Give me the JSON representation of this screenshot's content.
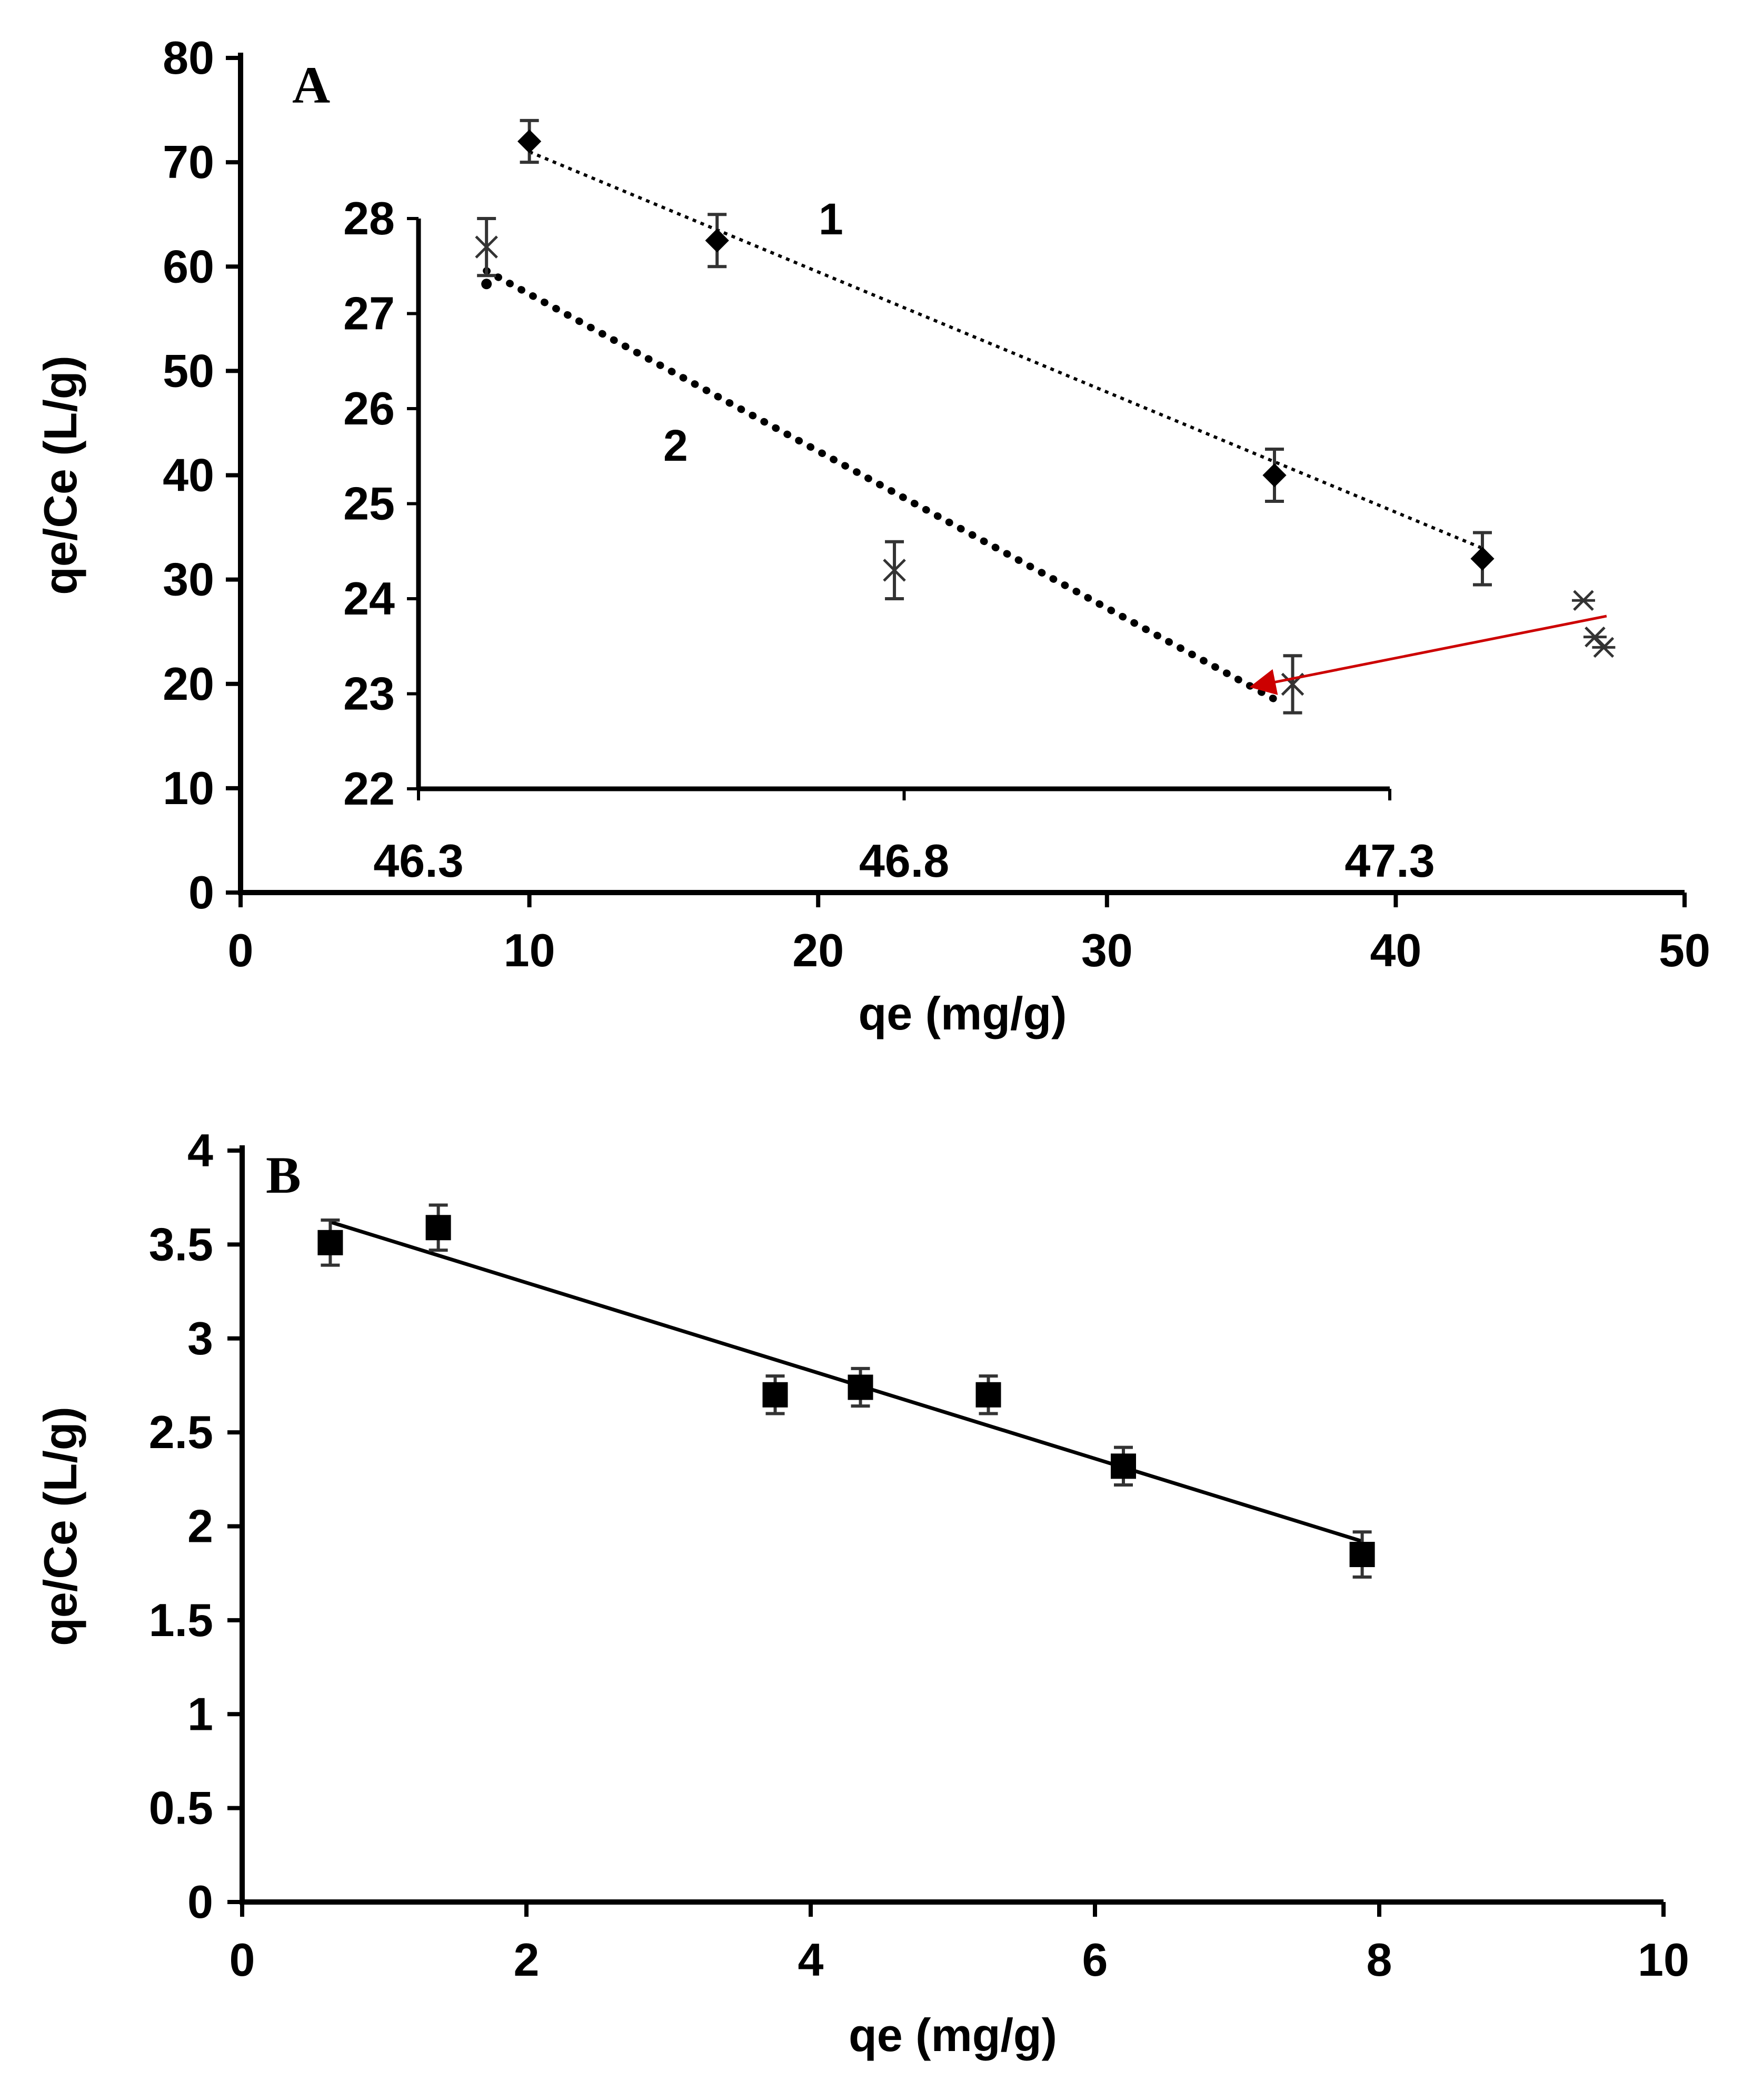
{
  "chart_data": [
    {
      "panel_label": "A",
      "type": "scatter",
      "xlabel": "qe (mg/g)",
      "ylabel": "qe/Ce (L/g)",
      "xlim": [
        0,
        50
      ],
      "ylim": [
        0,
        80
      ],
      "xticks": [
        "0",
        "10",
        "20",
        "30",
        "40",
        "50"
      ],
      "yticks": [
        "0",
        "10",
        "20",
        "30",
        "40",
        "50",
        "60",
        "70",
        "80"
      ],
      "series": [
        {
          "name": "1",
          "marker": "diamond",
          "x": [
            10.0,
            16.5,
            35.8,
            43.0
          ],
          "y": [
            72.0,
            62.5,
            40.0,
            32.0
          ],
          "error": [
            2.0,
            2.5,
            2.5,
            2.5
          ],
          "trendline": "dotted-fine",
          "fit_y": [
            71.0,
            33.0
          ]
        }
      ],
      "inset": {
        "xlim": [
          46.3,
          47.3
        ],
        "ylim": [
          22,
          28
        ],
        "xticks": [
          "46.3",
          "46.8",
          "47.3"
        ],
        "yticks": [
          "22",
          "23",
          "24",
          "25",
          "26",
          "27",
          "28"
        ],
        "series": [
          {
            "name": "2",
            "marker": "x",
            "x": [
              46.37,
              46.79,
              47.2
            ],
            "y": [
              27.7,
              24.3,
              23.1
            ],
            "error": [
              0.3,
              0.3,
              0.3
            ],
            "trendline": "dotted-bold",
            "fit_x": [
              46.37,
              47.18
            ],
            "fit_y": [
              27.45,
              22.95
            ]
          }
        ]
      },
      "outlier_markers": {
        "x": [
          46.5,
          46.9,
          47.2
        ],
        "y": [
          28.0,
          24.5,
          23.5
        ]
      },
      "annotation": "red arrow pointing from the main-scale points near qe = 47 to the inset"
    },
    {
      "panel_label": "B",
      "type": "scatter",
      "xlabel": "qe (mg/g)",
      "ylabel": "qe/Ce (L/g)",
      "xlim": [
        0,
        10
      ],
      "ylim": [
        0,
        4
      ],
      "xticks": [
        "0",
        "2",
        "4",
        "6",
        "8",
        "10"
      ],
      "yticks": [
        "0",
        "0.5",
        "1",
        "1.5",
        "2",
        "2.5",
        "3",
        "3.5",
        "4"
      ],
      "series": [
        {
          "name": "B",
          "marker": "square",
          "x": [
            0.62,
            1.38,
            3.75,
            4.35,
            5.25,
            6.2,
            7.88
          ],
          "y": [
            3.51,
            3.59,
            2.7,
            2.74,
            2.7,
            2.32,
            1.85
          ],
          "error": [
            0.12,
            0.12,
            0.1,
            0.1,
            0.1,
            0.1,
            0.12
          ],
          "trendline": "solid",
          "fit_x": [
            0.62,
            7.88
          ],
          "fit_y": [
            3.62,
            1.92
          ]
        }
      ]
    }
  ]
}
